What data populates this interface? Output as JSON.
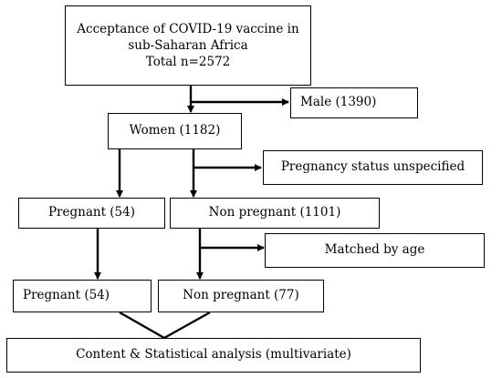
{
  "flowchart": {
    "root": {
      "line1": "Acceptance of COVID-19 vaccine in",
      "line2": "sub-Saharan Africa",
      "line3": "Total n=2572"
    },
    "male": "Male (1390)",
    "women": "Women (1182)",
    "pregnancy_unspecified": "Pregnancy status unspecified",
    "pregnant_1": "Pregnant (54)",
    "non_pregnant_1": "Non pregnant (1101)",
    "matched_by_age": "Matched by age",
    "pregnant_2": "Pregnant (54)",
    "non_pregnant_2": "Non pregnant (77)",
    "analysis": "Content & Statistical analysis (multivariate)"
  },
  "colors": {
    "stroke": "#000000",
    "background": "#ffffff"
  }
}
